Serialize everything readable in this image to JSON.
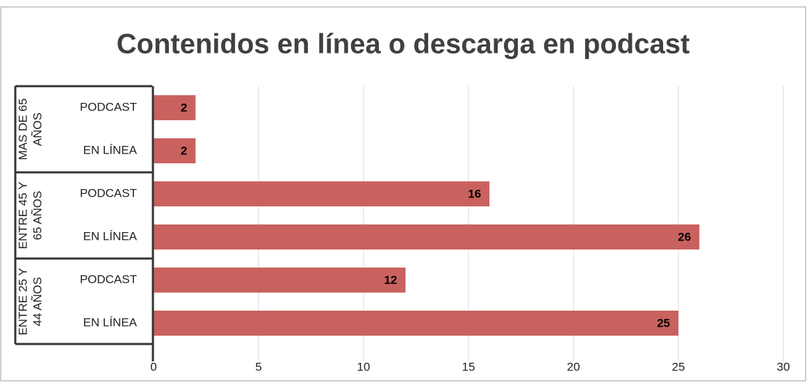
{
  "chart_data": {
    "type": "bar",
    "orientation": "horizontal",
    "title": "Contenidos en línea o descarga en podcast",
    "color": "#c9625f",
    "groups": [
      {
        "label_lines": [
          "MAS DE 65",
          "AÑOS"
        ],
        "categories": [
          "PODCAST",
          "EN LÍNEA"
        ],
        "values": [
          2,
          2
        ]
      },
      {
        "label_lines": [
          "ENTRE 45 Y",
          "65 AÑOS"
        ],
        "categories": [
          "PODCAST",
          "EN LÍNEA"
        ],
        "values": [
          16,
          26
        ]
      },
      {
        "label_lines": [
          "ENTRE 25 Y",
          "44 AÑOS"
        ],
        "categories": [
          "PODCAST",
          "EN LÍNEA"
        ],
        "values": [
          12,
          25
        ]
      }
    ],
    "xlim": [
      0,
      30
    ],
    "xticks": [
      0,
      5,
      10,
      15,
      20,
      25,
      30
    ],
    "grid": true
  }
}
